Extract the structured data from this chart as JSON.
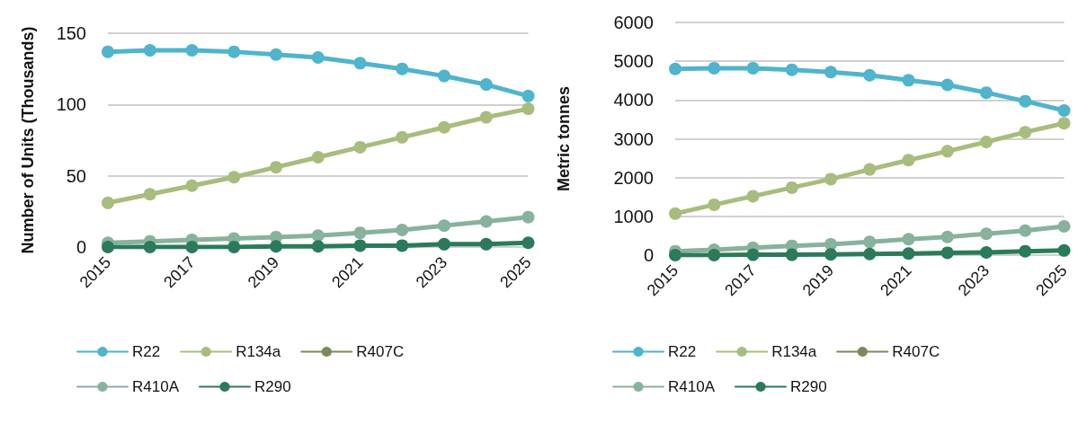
{
  "chart_data": [
    {
      "type": "line",
      "ylabel": "Number of Units (Thousands)",
      "categories": [
        "2015",
        null,
        "2017",
        null,
        "2019",
        null,
        "2021",
        null,
        "2023",
        null,
        "2025"
      ],
      "ylim": [
        0,
        150
      ],
      "yticks": [
        0,
        50,
        100,
        150
      ],
      "grid": "y",
      "legend": "bottom",
      "marker": "circle",
      "series": [
        {
          "name": "R22",
          "color": "#4fb4cc",
          "values": [
            137,
            138,
            138,
            137,
            135,
            133,
            129,
            125,
            120,
            114,
            106
          ]
        },
        {
          "name": "R134a",
          "color": "#a7bd7d",
          "values": [
            31,
            37,
            43,
            49,
            56,
            63,
            70,
            77,
            84,
            91,
            97
          ]
        },
        {
          "name": "R407C",
          "color": "#7b8a5b",
          "values": [
            null,
            null,
            null,
            null,
            null,
            null,
            null,
            null,
            null,
            null,
            null
          ]
        },
        {
          "name": "R410A",
          "color": "#87b29c",
          "values": [
            3,
            4,
            5,
            6,
            7,
            8,
            10,
            12,
            15,
            18,
            21
          ]
        },
        {
          "name": "R290",
          "color": "#2b7a59",
          "values": [
            0,
            0,
            0,
            0,
            0.5,
            0.5,
            1,
            1,
            2,
            2,
            3
          ]
        }
      ]
    },
    {
      "type": "line",
      "ylabel": "Metric tonnes",
      "categories": [
        "2015",
        null,
        "2017",
        null,
        "2019",
        null,
        "2021",
        null,
        "2023",
        null,
        "2025"
      ],
      "ylim": [
        0,
        6000
      ],
      "yticks": [
        0,
        1000,
        2000,
        3000,
        4000,
        5000,
        6000
      ],
      "grid": "y",
      "legend": "bottom",
      "marker": "circle",
      "series": [
        {
          "name": "R22",
          "color": "#4fb4cc",
          "values": [
            4800,
            4820,
            4820,
            4780,
            4720,
            4640,
            4510,
            4390,
            4190,
            3970,
            3730
          ]
        },
        {
          "name": "R134a",
          "color": "#a7bd7d",
          "values": [
            1070,
            1300,
            1520,
            1740,
            1960,
            2210,
            2450,
            2680,
            2920,
            3170,
            3400
          ]
        },
        {
          "name": "R407C",
          "color": "#7b8a5b",
          "values": [
            null,
            null,
            null,
            null,
            null,
            null,
            null,
            null,
            null,
            null,
            null
          ]
        },
        {
          "name": "R410A",
          "color": "#87b29c",
          "values": [
            100,
            140,
            190,
            240,
            280,
            340,
            410,
            470,
            550,
            630,
            740
          ]
        },
        {
          "name": "R290",
          "color": "#2b7a59",
          "values": [
            0,
            0,
            10,
            10,
            20,
            30,
            40,
            60,
            70,
            100,
            120
          ]
        }
      ]
    }
  ]
}
